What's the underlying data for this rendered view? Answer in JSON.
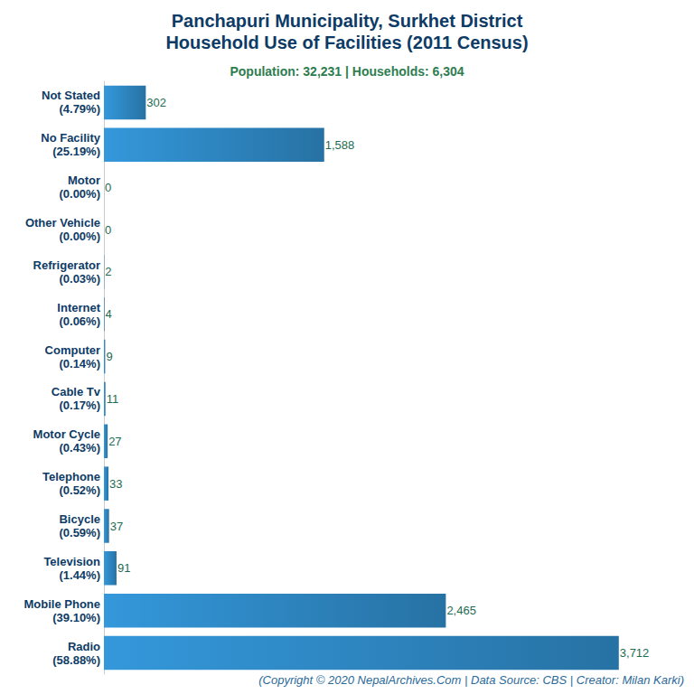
{
  "chart_data": {
    "type": "bar",
    "orientation": "horizontal",
    "title": "Panchapuri Municipality, Surkhet District\nHousehold Use of Facilities (2011 Census)",
    "subtitle": "Population: 32,231 | Households: 6,304",
    "footer": "(Copyright © 2020 NepalArchives.Com | Data Source: CBS | Creator: Milan Karki)",
    "categories": [
      "Not Stated",
      "No Facility",
      "Motor",
      "Other Vehicle",
      "Refrigerator",
      "Internet",
      "Computer",
      "Cable Tv",
      "Motor Cycle",
      "Telephone",
      "Bicycle",
      "Television",
      "Mobile Phone",
      "Radio"
    ],
    "percent_labels": [
      "(4.79%)",
      "(25.19%)",
      "(0.00%)",
      "(0.00%)",
      "(0.03%)",
      "(0.06%)",
      "(0.14%)",
      "(0.17%)",
      "(0.43%)",
      "(0.52%)",
      "(0.59%)",
      "(1.44%)",
      "(39.10%)",
      "(58.88%)"
    ],
    "values": [
      302,
      1588,
      0,
      0,
      2,
      4,
      9,
      11,
      27,
      33,
      37,
      91,
      2465,
      3712
    ],
    "value_labels": [
      "302",
      "1,588",
      "0",
      "0",
      "2",
      "4",
      "9",
      "11",
      "27",
      "33",
      "37",
      "91",
      "2,465",
      "3,712"
    ],
    "color": "#3498db",
    "xlim": [
      0,
      4000
    ],
    "grid": false,
    "data_labels": true,
    "tick_labels": "y"
  }
}
